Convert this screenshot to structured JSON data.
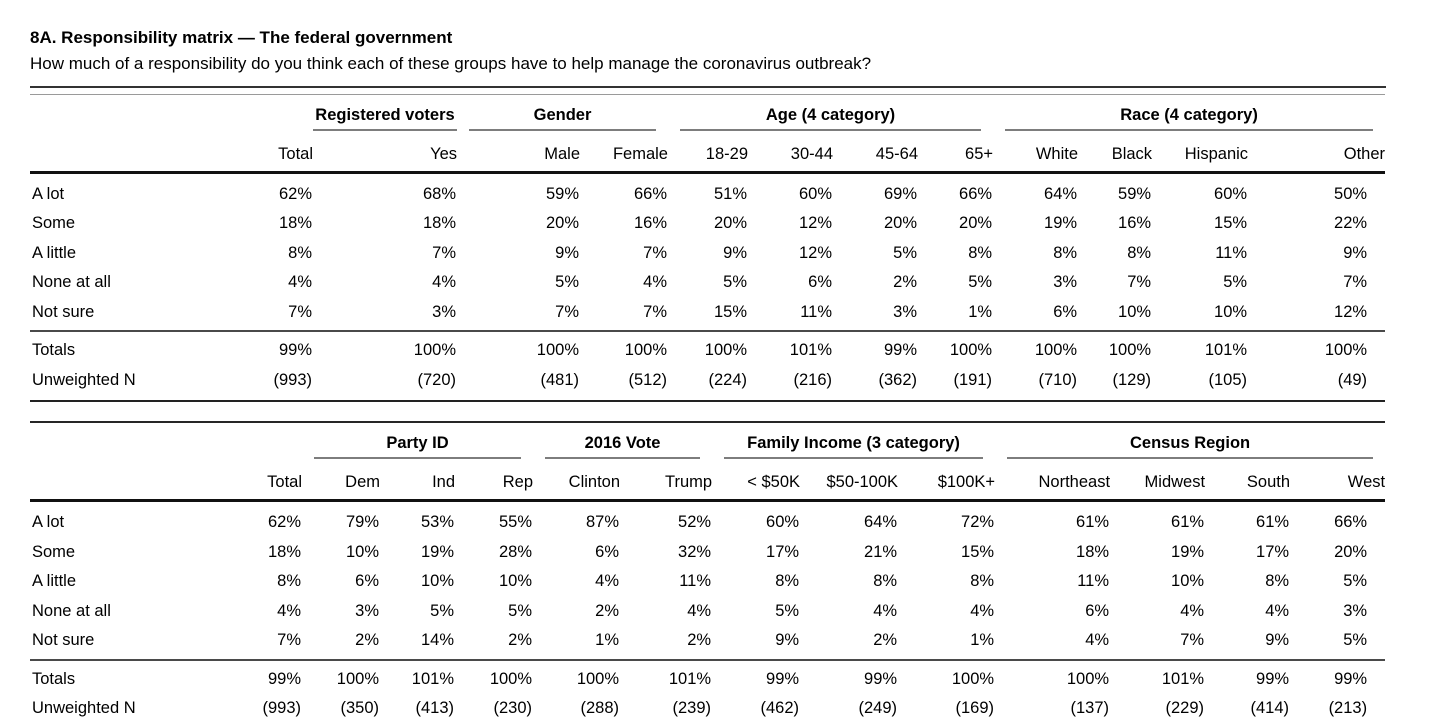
{
  "page": {
    "title": "8A. Responsibility matrix — The federal government",
    "subtitle": "How much of a responsibility do you think each of these groups have to help manage the coronavirus outbreak?"
  },
  "colors": {
    "text": "#000000",
    "heavy_rule": "#111111",
    "light_rule": "#7d7d7d"
  },
  "response_options": [
    "A lot",
    "Some",
    "A little",
    "None at all",
    "Not sure"
  ],
  "tables": [
    {
      "name": "demographics-crosstab",
      "groups": [
        {
          "label": "",
          "span": 2
        },
        {
          "label": "Registered voters",
          "span": 1
        },
        {
          "label": "Gender",
          "span": 2
        },
        {
          "label": "Age (4 category)",
          "span": 4
        },
        {
          "label": "Race (4 category)",
          "span": 4
        }
      ],
      "columns": [
        "",
        "Total",
        "Yes",
        "Male",
        "Female",
        "18-29",
        "30-44",
        "45-64",
        "65+",
        "White",
        "Black",
        "Hispanic",
        "Other"
      ],
      "rows": [
        {
          "label": "A lot",
          "values": [
            "62%",
            "68%",
            "59%",
            "66%",
            "51%",
            "60%",
            "69%",
            "66%",
            "64%",
            "59%",
            "60%",
            "50%"
          ]
        },
        {
          "label": "Some",
          "values": [
            "18%",
            "18%",
            "20%",
            "16%",
            "20%",
            "12%",
            "20%",
            "20%",
            "19%",
            "16%",
            "15%",
            "22%"
          ]
        },
        {
          "label": "A little",
          "values": [
            "8%",
            "7%",
            "9%",
            "7%",
            "9%",
            "12%",
            "5%",
            "8%",
            "8%",
            "8%",
            "11%",
            "9%"
          ]
        },
        {
          "label": "None at all",
          "values": [
            "4%",
            "4%",
            "5%",
            "4%",
            "5%",
            "6%",
            "2%",
            "5%",
            "3%",
            "7%",
            "5%",
            "7%"
          ]
        },
        {
          "label": "Not sure",
          "values": [
            "7%",
            "3%",
            "7%",
            "7%",
            "15%",
            "11%",
            "3%",
            "1%",
            "6%",
            "10%",
            "10%",
            "12%"
          ]
        }
      ],
      "footer_rows": [
        {
          "label": "Totals",
          "values": [
            "99%",
            "100%",
            "100%",
            "100%",
            "100%",
            "101%",
            "99%",
            "100%",
            "100%",
            "100%",
            "101%",
            "100%"
          ]
        },
        {
          "label": "Unweighted N",
          "values": [
            "(993)",
            "(720)",
            "(481)",
            "(512)",
            "(224)",
            "(216)",
            "(362)",
            "(191)",
            "(710)",
            "(129)",
            "(105)",
            "(49)"
          ]
        }
      ]
    },
    {
      "name": "politics-income-region-crosstab",
      "groups": [
        {
          "label": "",
          "span": 2
        },
        {
          "label": "Party ID",
          "span": 3
        },
        {
          "label": "2016 Vote",
          "span": 2
        },
        {
          "label": "Family Income (3 category)",
          "span": 3
        },
        {
          "label": "Census Region",
          "span": 4
        }
      ],
      "columns": [
        "",
        "Total",
        "Dem",
        "Ind",
        "Rep",
        "Clinton",
        "Trump",
        "< $50K",
        "$50-100K",
        "$100K+",
        "Northeast",
        "Midwest",
        "South",
        "West"
      ],
      "rows": [
        {
          "label": "A lot",
          "values": [
            "62%",
            "79%",
            "53%",
            "55%",
            "87%",
            "52%",
            "60%",
            "64%",
            "72%",
            "61%",
            "61%",
            "61%",
            "66%"
          ]
        },
        {
          "label": "Some",
          "values": [
            "18%",
            "10%",
            "19%",
            "28%",
            "6%",
            "32%",
            "17%",
            "21%",
            "15%",
            "18%",
            "19%",
            "17%",
            "20%"
          ]
        },
        {
          "label": "A little",
          "values": [
            "8%",
            "6%",
            "10%",
            "10%",
            "4%",
            "11%",
            "8%",
            "8%",
            "8%",
            "11%",
            "10%",
            "8%",
            "5%"
          ]
        },
        {
          "label": "None at all",
          "values": [
            "4%",
            "3%",
            "5%",
            "5%",
            "2%",
            "4%",
            "5%",
            "4%",
            "4%",
            "6%",
            "4%",
            "4%",
            "3%"
          ]
        },
        {
          "label": "Not sure",
          "values": [
            "7%",
            "2%",
            "14%",
            "2%",
            "1%",
            "2%",
            "9%",
            "2%",
            "1%",
            "4%",
            "7%",
            "9%",
            "5%"
          ]
        }
      ],
      "footer_rows": [
        {
          "label": "Totals",
          "values": [
            "99%",
            "100%",
            "101%",
            "100%",
            "100%",
            "101%",
            "99%",
            "99%",
            "100%",
            "100%",
            "101%",
            "99%",
            "99%"
          ]
        },
        {
          "label": "Unweighted N",
          "values": [
            "(993)",
            "(350)",
            "(413)",
            "(230)",
            "(288)",
            "(239)",
            "(462)",
            "(249)",
            "(169)",
            "(137)",
            "(229)",
            "(414)",
            "(213)"
          ]
        }
      ]
    }
  ]
}
